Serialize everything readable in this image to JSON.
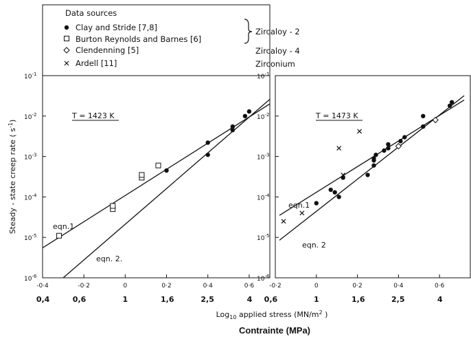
{
  "legend": {
    "heading": "Data sources",
    "entries": [
      {
        "symbol": "filled-circle",
        "label": "Clay and Stride  [7,8]"
      },
      {
        "symbol": "open-square",
        "label": "Burton Reynolds and Barnes [6]"
      },
      {
        "symbol": "open-diamond",
        "label": "Clendenning [5]"
      },
      {
        "symbol": "cross",
        "label": "Ardell [11]"
      }
    ],
    "materials": [
      "Zircaloy - 2",
      "Zircaloy - 4",
      "Zirconium"
    ]
  },
  "axes": {
    "ylabel": "Steady - state creep rate  ( s",
    "ylabel_sup": "-1",
    "ylabel_end": ")",
    "xlabel_log": "Log",
    "xlabel_sub": "10",
    "xlabel_rest": " applied stress (MN/m",
    "xlabel_sup": "2",
    "xlabel_end": " )",
    "caption": "Contrainte (MPa)",
    "y_ticks": [
      {
        "exp": -6,
        "base": "10",
        "sup": "-6"
      },
      {
        "exp": -5,
        "base": "10",
        "sup": "-5"
      },
      {
        "exp": -4,
        "base": "10",
        "sup": "-4"
      },
      {
        "exp": -3,
        "base": "10",
        "sup": "-3"
      },
      {
        "exp": -2,
        "base": "10",
        "sup": "-2"
      },
      {
        "exp": -1,
        "base": "10",
        "sup": "-1"
      }
    ]
  },
  "colors": {
    "ink": "#111111",
    "background": "#ffffff"
  },
  "chart_data": [
    {
      "type": "scatter",
      "title": "T = 1423 K",
      "x_scale": "linear",
      "y_scale": "log",
      "xlim": [
        -0.4,
        0.7
      ],
      "ylim": [
        1e-06,
        0.1
      ],
      "x_ticks": [
        {
          "v": -0.4,
          "label": "-0·4"
        },
        {
          "v": -0.2,
          "label": "-0·2"
        },
        {
          "v": 0.0,
          "label": "0"
        },
        {
          "v": 0.2,
          "label": "0·2"
        },
        {
          "v": 0.4,
          "label": "0·4"
        },
        {
          "v": 0.6,
          "label": "0·6"
        }
      ],
      "stress_ticks": [
        {
          "v": -0.398,
          "label": "0,4"
        },
        {
          "v": -0.222,
          "label": "0,6"
        },
        {
          "v": 0.0,
          "label": "1"
        },
        {
          "v": 0.204,
          "label": "1,6"
        },
        {
          "v": 0.398,
          "label": "2,5"
        },
        {
          "v": 0.602,
          "label": "4"
        }
      ],
      "series": [
        {
          "name": "Clay and Stride  [7,8]",
          "marker": "filled-circle",
          "points": [
            [
              0.2,
              0.00045
            ],
            [
              0.4,
              0.0011
            ],
            [
              0.4,
              0.0022
            ],
            [
              0.52,
              0.0045
            ],
            [
              0.52,
              0.0055
            ],
            [
              0.58,
              0.01
            ],
            [
              0.6,
              0.013
            ]
          ]
        },
        {
          "name": "Burton Reynolds and Barnes [6]",
          "marker": "open-square",
          "points": [
            [
              -0.32,
              1.1e-05
            ],
            [
              -0.06,
              5e-05
            ],
            [
              -0.06,
              6e-05
            ],
            [
              0.08,
              0.0003
            ],
            [
              0.08,
              0.00035
            ],
            [
              0.16,
              0.0006
            ]
          ]
        }
      ],
      "lines": [
        {
          "label": "eqn.1",
          "from": [
            -0.4,
            5.5e-06
          ],
          "to": [
            0.7,
            0.02
          ]
        },
        {
          "label": "eqn. 2.",
          "from": [
            -0.3,
            1e-06
          ],
          "to": [
            0.7,
            0.026
          ]
        }
      ]
    },
    {
      "type": "scatter",
      "title": "T = 1473 K",
      "x_scale": "linear",
      "y_scale": "log",
      "xlim": [
        -0.2,
        0.75
      ],
      "ylim": [
        1e-06,
        0.1
      ],
      "x_ticks": [
        {
          "v": -0.2,
          "label": "-0·2"
        },
        {
          "v": 0.0,
          "label": "0"
        },
        {
          "v": 0.2,
          "label": "0·2"
        },
        {
          "v": 0.4,
          "label": "0·4"
        },
        {
          "v": 0.6,
          "label": "0·6"
        }
      ],
      "stress_ticks": [
        {
          "v": -0.222,
          "label": "0,6"
        },
        {
          "v": 0.0,
          "label": "1"
        },
        {
          "v": 0.204,
          "label": "1,6"
        },
        {
          "v": 0.398,
          "label": "2,5"
        },
        {
          "v": 0.602,
          "label": "4"
        }
      ],
      "series": [
        {
          "name": "Clay and Stride  [7,8]",
          "marker": "filled-circle",
          "points": [
            [
              0,
              7e-05
            ],
            [
              0.07,
              0.00015
            ],
            [
              0.09,
              0.00013
            ],
            [
              0.11,
              0.0001
            ],
            [
              0.13,
              0.0003
            ],
            [
              0.25,
              0.00035
            ],
            [
              0.28,
              0.0006
            ],
            [
              0.28,
              0.0008
            ],
            [
              0.28,
              0.0009
            ],
            [
              0.29,
              0.0011
            ],
            [
              0.33,
              0.0014
            ],
            [
              0.35,
              0.0016
            ],
            [
              0.35,
              0.002
            ],
            [
              0.41,
              0.0024
            ],
            [
              0.43,
              0.003
            ],
            [
              0.52,
              0.0055
            ],
            [
              0.52,
              0.01
            ],
            [
              0.65,
              0.018
            ],
            [
              0.66,
              0.022
            ]
          ]
        },
        {
          "name": "Clendenning [5]",
          "marker": "open-diamond",
          "points": [
            [
              0.4,
              0.0018
            ],
            [
              0.58,
              0.008
            ]
          ]
        },
        {
          "name": "Ardell [11]",
          "marker": "cross",
          "points": [
            [
              -0.16,
              2.5e-05
            ],
            [
              -0.07,
              4e-05
            ],
            [
              0.11,
              0.0016
            ],
            [
              0.21,
              0.0042
            ],
            [
              0.13,
              0.00035
            ]
          ]
        }
      ],
      "lines": [
        {
          "label": "eqn.1",
          "from": [
            -0.18,
            3.5e-05
          ],
          "to": [
            0.72,
            0.025
          ]
        },
        {
          "label": "eqn. 2",
          "from": [
            -0.18,
            8.5e-06
          ],
          "to": [
            0.72,
            0.032
          ]
        }
      ]
    }
  ]
}
